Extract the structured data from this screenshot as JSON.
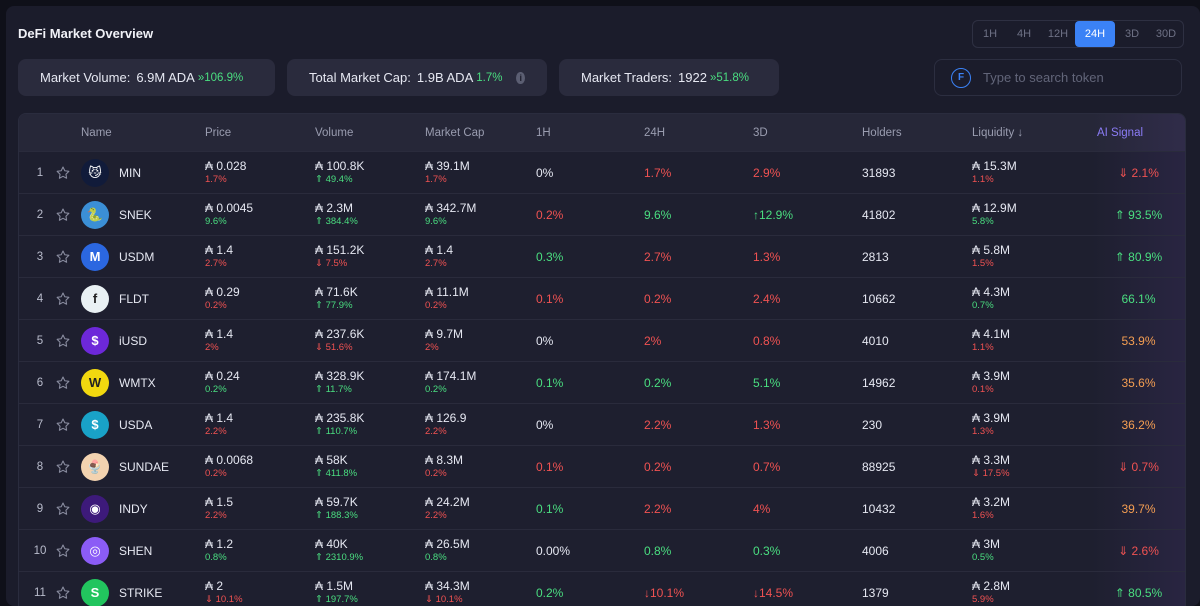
{
  "title": "DeFi Market Overview",
  "timeframes": [
    "1H",
    "4H",
    "12H",
    "24H",
    "3D",
    "30D"
  ],
  "active_timeframe": "24H",
  "stats": {
    "volume": {
      "label": "Market Volume:",
      "value": "6.9M ADA",
      "change": "106.9%"
    },
    "market_cap": {
      "label": "Total Market Cap:",
      "value": "1.9B ADA",
      "change": "1.7%"
    },
    "traders": {
      "label": "Market Traders:",
      "value": "1922",
      "change": "51.8%"
    }
  },
  "search": {
    "placeholder": "Type to search token"
  },
  "columns": {
    "name": "Name",
    "price": "Price",
    "volume": "Volume",
    "mcap": "Market Cap",
    "h1": "1H",
    "h24": "24H",
    "d3": "3D",
    "holders": "Holders",
    "liquidity": "Liquidity",
    "ai": "AI Signal"
  },
  "currency_symbol": "₳",
  "rows": [
    {
      "n": "1",
      "name": "MIN",
      "price": "0.028",
      "price_chg": "1.7%",
      "price_dir": "red",
      "vol": "100.8K",
      "vol_chg": "49.4%",
      "vol_dir": "green",
      "mcap": "39.1M",
      "mcap_chg": "1.7%",
      "mcap_dir": "red",
      "h1": "0%",
      "h1_dir": "white",
      "h24": "1.7%",
      "h24_dir": "red",
      "d3": "2.9%",
      "d3_dir": "red",
      "holders": "31893",
      "liq": "15.3M",
      "liq_chg": "1.1%",
      "liq_dir": "red",
      "ai": "2.1%",
      "ai_dir": "red",
      "icon": "cat-icon",
      "color": "#111b3a",
      "glyph": "😼"
    },
    {
      "n": "2",
      "name": "SNEK",
      "price": "0.0045",
      "price_chg": "9.6%",
      "price_dir": "green",
      "vol": "2.3M",
      "vol_chg": "384.4%",
      "vol_dir": "green",
      "mcap": "342.7M",
      "mcap_chg": "9.6%",
      "mcap_dir": "green",
      "h1": "0.2%",
      "h1_dir": "red",
      "h24": "9.6%",
      "h24_dir": "green",
      "d3": "12.9%",
      "d3_dir": "green",
      "holders": "41802",
      "liq": "12.9M",
      "liq_chg": "5.8%",
      "liq_dir": "green",
      "ai": "93.5%",
      "ai_dir": "green",
      "icon": "snake-icon",
      "color": "#3b8fd6",
      "glyph": "🐍"
    },
    {
      "n": "3",
      "name": "USDM",
      "price": "1.4",
      "price_chg": "2.7%",
      "price_dir": "red",
      "vol": "151.2K",
      "vol_chg": "7.5%",
      "vol_dir": "red",
      "mcap": "1.4",
      "mcap_chg": "2.7%",
      "mcap_dir": "red",
      "h1": "0.3%",
      "h1_dir": "green",
      "h24": "2.7%",
      "h24_dir": "red",
      "d3": "1.3%",
      "d3_dir": "red",
      "holders": "2813",
      "liq": "5.8M",
      "liq_chg": "1.5%",
      "liq_dir": "red",
      "ai": "80.9%",
      "ai_dir": "green",
      "icon": "usdm-icon",
      "color": "#2b67e0",
      "glyph": "M"
    },
    {
      "n": "4",
      "name": "FLDT",
      "price": "0.29",
      "price_chg": "0.2%",
      "price_dir": "red",
      "vol": "71.6K",
      "vol_chg": "77.9%",
      "vol_dir": "green",
      "mcap": "11.1M",
      "mcap_chg": "0.2%",
      "mcap_dir": "red",
      "h1": "0.1%",
      "h1_dir": "red",
      "h24": "0.2%",
      "h24_dir": "red",
      "d3": "2.4%",
      "d3_dir": "red",
      "holders": "10662",
      "liq": "4.3M",
      "liq_chg": "0.7%",
      "liq_dir": "green",
      "ai": "66.1%",
      "ai_dir": "green",
      "icon": "fluid-icon",
      "color": "#e9f1f4",
      "glyph": "f"
    },
    {
      "n": "5",
      "name": "iUSD",
      "price": "1.4",
      "price_chg": "2%",
      "price_dir": "red",
      "vol": "237.6K",
      "vol_chg": "51.6%",
      "vol_dir": "red",
      "mcap": "9.7M",
      "mcap_chg": "2%",
      "mcap_dir": "red",
      "h1": "0%",
      "h1_dir": "white",
      "h24": "2%",
      "h24_dir": "red",
      "d3": "0.8%",
      "d3_dir": "red",
      "holders": "4010",
      "liq": "4.1M",
      "liq_chg": "1.1%",
      "liq_dir": "red",
      "ai": "53.9%",
      "ai_dir": "orange",
      "icon": "dollar-icon",
      "color": "#6d28d9",
      "glyph": "$"
    },
    {
      "n": "6",
      "name": "WMTX",
      "price": "0.24",
      "price_chg": "0.2%",
      "price_dir": "green",
      "vol": "328.9K",
      "vol_chg": "11.7%",
      "vol_dir": "green",
      "mcap": "174.1M",
      "mcap_chg": "0.2%",
      "mcap_dir": "green",
      "h1": "0.1%",
      "h1_dir": "green",
      "h24": "0.2%",
      "h24_dir": "green",
      "d3": "5.1%",
      "d3_dir": "green",
      "holders": "14962",
      "liq": "3.9M",
      "liq_chg": "0.1%",
      "liq_dir": "red",
      "ai": "35.6%",
      "ai_dir": "orange",
      "icon": "world-mobile-icon",
      "color": "#f2d80f",
      "glyph": "W"
    },
    {
      "n": "7",
      "name": "USDA",
      "price": "1.4",
      "price_chg": "2.2%",
      "price_dir": "red",
      "vol": "235.8K",
      "vol_chg": "110.7%",
      "vol_dir": "green",
      "mcap": "126.9",
      "mcap_chg": "2.2%",
      "mcap_dir": "red",
      "h1": "0%",
      "h1_dir": "white",
      "h24": "2.2%",
      "h24_dir": "red",
      "d3": "1.3%",
      "d3_dir": "red",
      "holders": "230",
      "liq": "3.9M",
      "liq_chg": "1.3%",
      "liq_dir": "red",
      "ai": "36.2%",
      "ai_dir": "orange",
      "icon": "usda-icon",
      "color": "#19a2c7",
      "glyph": "$"
    },
    {
      "n": "8",
      "name": "SUNDAE",
      "price": "0.0068",
      "price_chg": "0.2%",
      "price_dir": "red",
      "vol": "58K",
      "vol_chg": "411.8%",
      "vol_dir": "green",
      "mcap": "8.3M",
      "mcap_chg": "0.2%",
      "mcap_dir": "red",
      "h1": "0.1%",
      "h1_dir": "red",
      "h24": "0.2%",
      "h24_dir": "red",
      "d3": "0.7%",
      "d3_dir": "red",
      "holders": "88925",
      "liq": "3.3M",
      "liq_chg": "17.5%",
      "liq_dir": "red",
      "ai": "0.7%",
      "ai_dir": "red",
      "icon": "sundae-icon",
      "color": "#f3d3b0",
      "glyph": "🍨"
    },
    {
      "n": "9",
      "name": "INDY",
      "price": "1.5",
      "price_chg": "2.2%",
      "price_dir": "red",
      "vol": "59.7K",
      "vol_chg": "188.3%",
      "vol_dir": "green",
      "mcap": "24.2M",
      "mcap_chg": "2.2%",
      "mcap_dir": "red",
      "h1": "0.1%",
      "h1_dir": "green",
      "h24": "2.2%",
      "h24_dir": "red",
      "d3": "4%",
      "d3_dir": "red",
      "holders": "10432",
      "liq": "3.2M",
      "liq_chg": "1.6%",
      "liq_dir": "red",
      "ai": "39.7%",
      "ai_dir": "orange",
      "icon": "eye-icon",
      "color": "#3d1a7a",
      "glyph": "◉"
    },
    {
      "n": "10",
      "name": "SHEN",
      "price": "1.2",
      "price_chg": "0.8%",
      "price_dir": "green",
      "vol": "40K",
      "vol_chg": "2310.9%",
      "vol_dir": "green",
      "mcap": "26.5M",
      "mcap_chg": "0.8%",
      "mcap_dir": "green",
      "h1": "0.00%",
      "h1_dir": "white",
      "h24": "0.8%",
      "h24_dir": "green",
      "d3": "0.3%",
      "d3_dir": "green",
      "holders": "4006",
      "liq": "3M",
      "liq_chg": "0.5%",
      "liq_dir": "green",
      "ai": "2.6%",
      "ai_dir": "red",
      "icon": "shen-icon",
      "color": "#8b5cf6",
      "glyph": "◎"
    },
    {
      "n": "11",
      "name": "STRIKE",
      "price": "2",
      "price_chg": "10.1%",
      "price_dir": "red",
      "vol": "1.5M",
      "vol_chg": "197.7%",
      "vol_dir": "green",
      "mcap": "34.3M",
      "mcap_chg": "10.1%",
      "mcap_dir": "red",
      "h1": "0.2%",
      "h1_dir": "green",
      "h24": "10.1%",
      "h24_dir": "red",
      "d3": "14.5%",
      "d3_dir": "red",
      "holders": "1379",
      "liq": "2.8M",
      "liq_chg": "5.9%",
      "liq_dir": "red",
      "ai": "80.5%",
      "ai_dir": "green",
      "icon": "strike-icon",
      "color": "#22c55e",
      "glyph": "S"
    }
  ]
}
